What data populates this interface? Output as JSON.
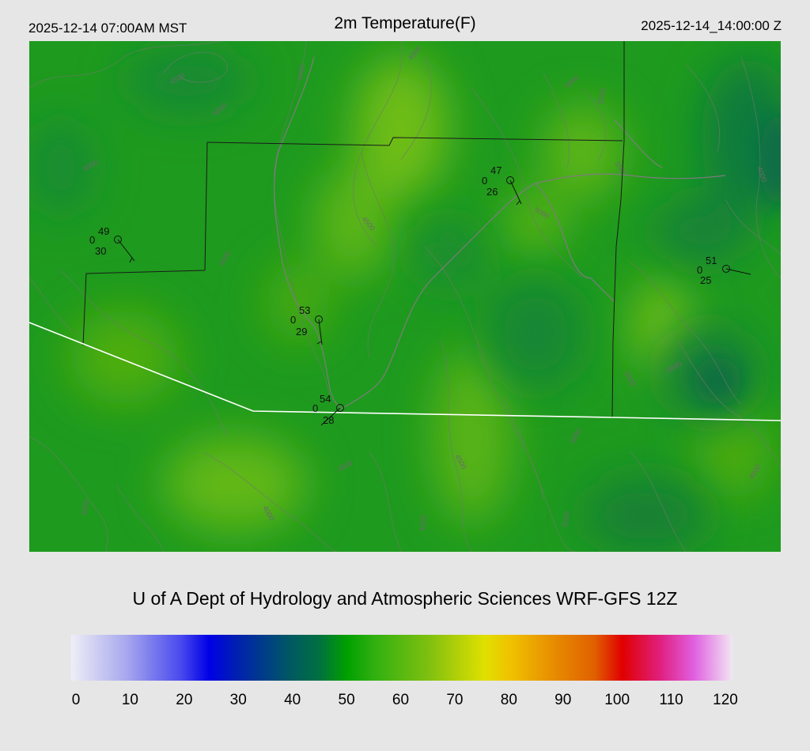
{
  "header": {
    "local_time": "2025-12-14 07:00AM MST",
    "title": "2m Temperature(F)",
    "utc_time": "2025-12-14_14:00:00 Z"
  },
  "credit": "U of A Dept of Hydrology and Atmospheric Sciences WRF-GFS 12Z",
  "colorbar": {
    "tick_labels": [
      "0",
      "10",
      "20",
      "30",
      "40",
      "50",
      "60",
      "70",
      "80",
      "90",
      "100",
      "110",
      "120"
    ],
    "colors": {
      "0": "#eeeef6",
      "10": "#a8a8ee",
      "20": "#4848ee",
      "25": "#0000e6",
      "30": "#0020b0",
      "40": "#005a60",
      "45": "#007040",
      "50": "#00a000",
      "55": "#30b010",
      "65": "#80c010",
      "75": "#e0e000",
      "80": "#f0c000",
      "87": "#e89000",
      "95": "#e06000",
      "100": "#e00000",
      "107": "#e02080",
      "113": "#e060e0",
      "120": "#f2e6f2"
    }
  },
  "stations": [
    {
      "id": "s1",
      "temp": "49",
      "dewpoint": "30",
      "sky": "0"
    },
    {
      "id": "s2",
      "temp": "47",
      "dewpoint": "26",
      "sky": "0"
    },
    {
      "id": "s3",
      "temp": "53",
      "dewpoint": "29",
      "sky": "0"
    },
    {
      "id": "s4",
      "temp": "54",
      "dewpoint": "28",
      "sky": "0"
    },
    {
      "id": "s5",
      "temp": "51",
      "dewpoint": "25",
      "sky": "0"
    }
  ],
  "contour_labels": [
    "4000",
    "4500",
    "5000",
    "5500",
    "6000"
  ]
}
